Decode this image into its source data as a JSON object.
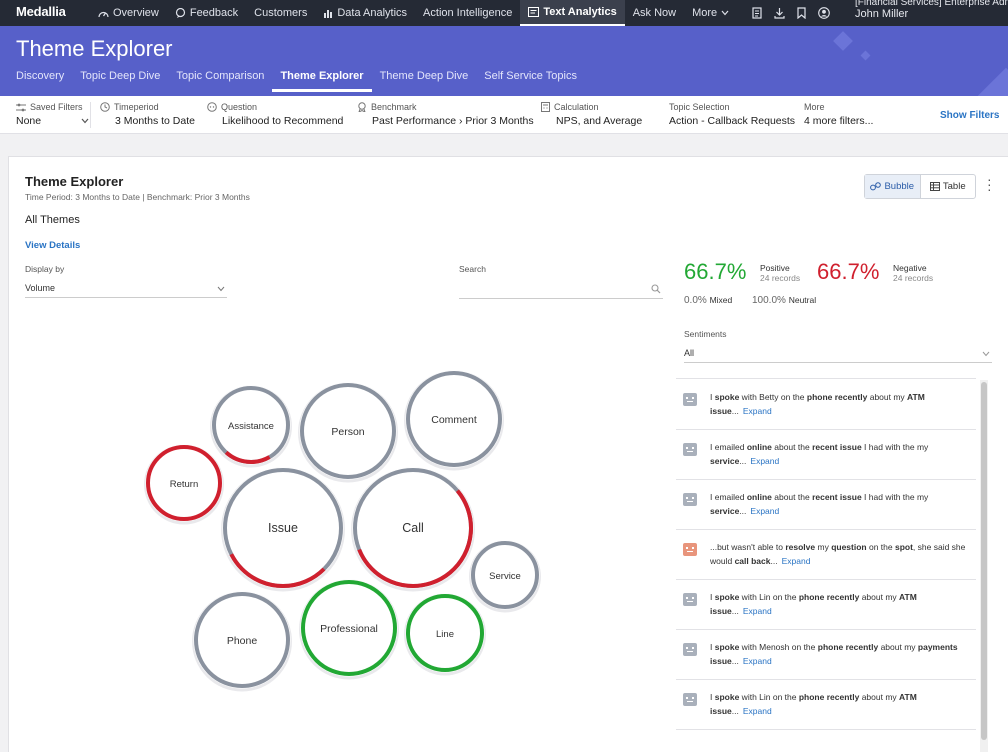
{
  "topnav": {
    "brand": "Medallia",
    "items": [
      {
        "label": "Overview",
        "icon": "gauge-icon"
      },
      {
        "label": "Feedback",
        "icon": "chat-icon"
      },
      {
        "label": "Customers",
        "icon": ""
      },
      {
        "label": "Data Analytics",
        "icon": "chart-icon"
      },
      {
        "label": "Action Intelligence",
        "icon": ""
      },
      {
        "label": "Text Analytics",
        "icon": "text-analytics-icon"
      },
      {
        "label": "Ask Now",
        "icon": ""
      },
      {
        "label": "More",
        "icon": "chevron-down-icon"
      }
    ],
    "active": "Text Analytics",
    "user_org": "[Financial Services] Enterprise Admin",
    "user_name": "John Miller"
  },
  "header": {
    "title": "Theme Explorer",
    "tabs": [
      "Discovery",
      "Topic Deep Dive",
      "Topic Comparison",
      "Theme Explorer",
      "Theme Deep Dive",
      "Self Service Topics"
    ],
    "active_tab": "Theme Explorer"
  },
  "filters": [
    {
      "label": "Saved Filters",
      "value": "None"
    },
    {
      "label": "Timeperiod",
      "value": "3 Months to Date"
    },
    {
      "label": "Question",
      "value": "Likelihood to Recommend"
    },
    {
      "label": "Benchmark",
      "value": "Past Performance › Prior 3 Months"
    },
    {
      "label": "Calculation",
      "value": "NPS, and Average"
    },
    {
      "label": "Topic Selection",
      "value": "Action - Callback Requests"
    },
    {
      "label": "More",
      "value": "4 more filters..."
    }
  ],
  "show_filters": "Show Filters",
  "card": {
    "title": "Theme Explorer",
    "subtitle": "Time Period: 3 Months to Date | Benchmark: Prior 3 Months",
    "all_themes": "All Themes",
    "view_details": "View Details",
    "view_bubble": "Bubble",
    "view_table": "Table",
    "display_by_label": "Display by",
    "display_by_value": "Volume",
    "search_label": "Search"
  },
  "bubbles": [
    {
      "label": "Assistance",
      "negative_share": 0.2,
      "ring": "mixed"
    },
    {
      "label": "Person",
      "negative_share": 0,
      "ring": "neutral"
    },
    {
      "label": "Comment",
      "negative_share": 0,
      "ring": "neutral"
    },
    {
      "label": "Return",
      "negative_share": 1,
      "ring": "negative"
    },
    {
      "label": "Issue",
      "negative_share": 0.3,
      "ring": "mixed"
    },
    {
      "label": "Call",
      "negative_share": 0.55,
      "ring": "mixed"
    },
    {
      "label": "Service",
      "negative_share": 0,
      "ring": "neutral"
    },
    {
      "label": "Phone",
      "negative_share": 0,
      "ring": "neutral"
    },
    {
      "label": "Professional",
      "negative_share": 0,
      "ring": "positive"
    },
    {
      "label": "Line",
      "negative_share": 0,
      "ring": "positive"
    }
  ],
  "colors": {
    "neutral": "#8a929f",
    "negative": "#d0202e",
    "positive": "#22a834",
    "accent": "#5760c9",
    "link": "#2a74c4"
  },
  "sentiment": {
    "positive_pct": "66.7%",
    "positive_label": "Positive",
    "positive_records": "24 records",
    "negative_pct": "66.7%",
    "negative_label": "Negative",
    "negative_records": "24 records",
    "mixed_pct": "0.0%",
    "mixed_label": "Mixed",
    "neutral_pct": "100.0%",
    "neutral_label": "Neutral",
    "sentiments_label": "Sentiments",
    "sentiments_value": "All"
  },
  "comments": [
    {
      "html": "I <b>spoke</b> with Betty on the <b>phone recently</b> about my <b>ATM</b> <b>issue</b>...",
      "expand": "Expand",
      "face": "neutral"
    },
    {
      "html": "I emailed <b>online</b> about the <b>recent issue</b> I had with the my <b>service</b>...",
      "expand": "Expand",
      "face": "neutral"
    },
    {
      "html": "I emailed <b>online</b> about the <b>recent issue</b> I had with the my <b>service</b>...",
      "expand": "Expand",
      "face": "neutral"
    },
    {
      "html": "...but wasn't able to <b>resolve</b> my <b>question</b> on the <b>spot</b>, she said she would <b>call back</b>...",
      "expand": "Expand",
      "face": "negative"
    },
    {
      "html": "I <b>spoke</b> with Lin on the <b>phone recently</b> about my <b>ATM issue</b>...",
      "expand": "Expand",
      "face": "neutral"
    },
    {
      "html": "I <b>spoke</b> with Menosh on the <b>phone recently</b> about my <b>payments issue</b>...",
      "expand": "Expand",
      "face": "neutral"
    },
    {
      "html": "I <b>spoke</b> with Lin on the <b>phone recently</b> about my <b>ATM issue</b>...",
      "expand": "Expand",
      "face": "neutral"
    }
  ]
}
